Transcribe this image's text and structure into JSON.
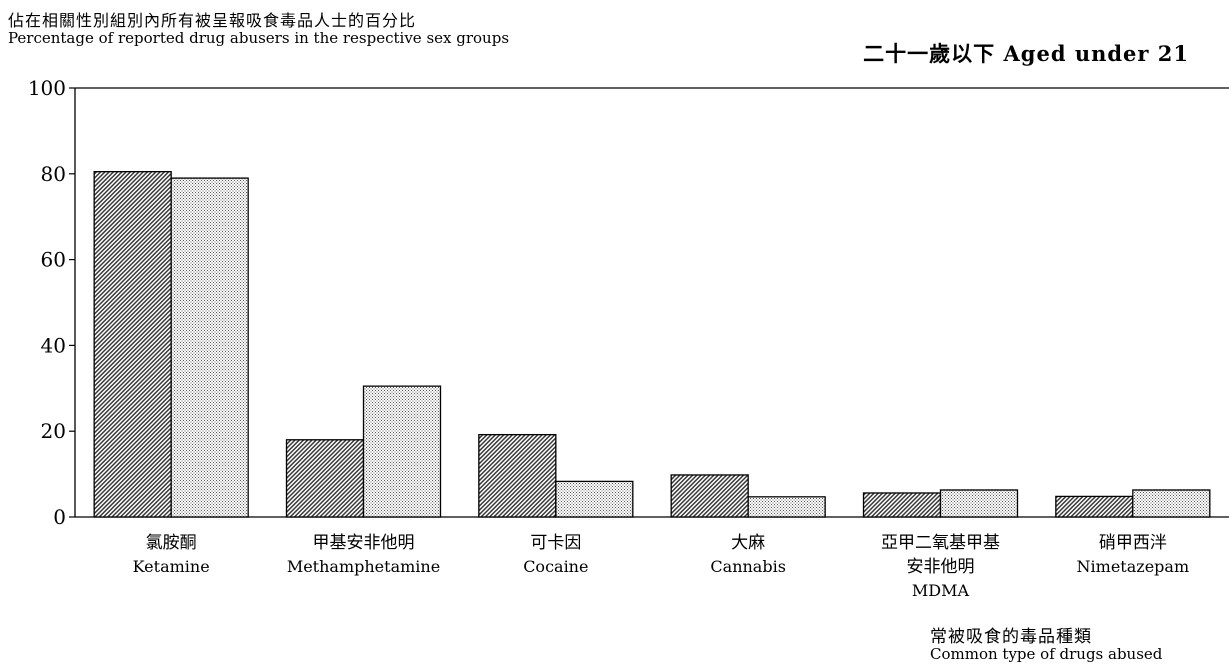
{
  "chart_data": {
    "type": "bar",
    "title": "二十一歲以下 Aged under 21",
    "ylabel_zh": "佔在相關性別組別內所有被呈報吸食毒品人士的百分比",
    "ylabel_en": "Percentage of reported drug abusers in the respective sex groups",
    "xlabel_zh": "常被吸食的毒品種類",
    "xlabel_en": "Common type of drugs abused",
    "ylim": [
      0,
      100
    ],
    "yticks": [
      0,
      20,
      40,
      60,
      80,
      100
    ],
    "categories": [
      {
        "zh": "氯胺酮",
        "en": "Ketamine"
      },
      {
        "zh": "甲基安非他明",
        "en": "Methamphetamine"
      },
      {
        "zh": "可卡因",
        "en": "Cocaine"
      },
      {
        "zh": "大麻",
        "en": "Cannabis"
      },
      {
        "zh": "亞甲二氧基甲基安非他明",
        "zh_lines": [
          "亞甲二氧基甲基",
          "安非他明"
        ],
        "en": "MDMA"
      },
      {
        "zh": "硝甲西泮",
        "en": "Nimetazepam"
      }
    ],
    "series": [
      {
        "pattern": "diagonal-hatch",
        "values": [
          80.5,
          18.0,
          19.2,
          9.8,
          5.6,
          4.8
        ]
      },
      {
        "pattern": "dotted",
        "values": [
          79.0,
          30.5,
          8.3,
          4.7,
          6.3,
          6.3
        ]
      }
    ],
    "legend": "none",
    "grid": false
  }
}
